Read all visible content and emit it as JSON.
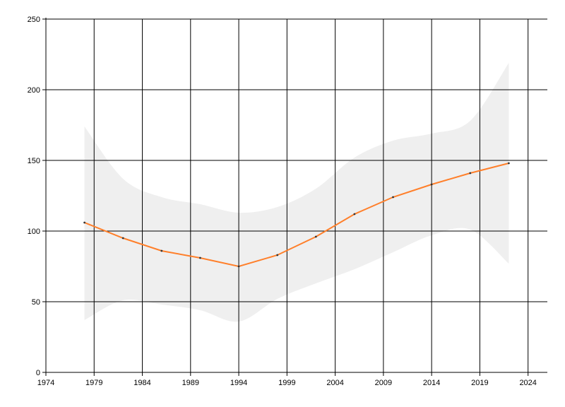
{
  "chart_data": {
    "type": "line",
    "title": "",
    "xlabel": "",
    "ylabel": "",
    "xlim": [
      1974,
      2026
    ],
    "ylim": [
      0,
      250
    ],
    "x_ticks": [
      1974,
      1979,
      1984,
      1989,
      1994,
      1999,
      2004,
      2009,
      2014,
      2019,
      2024
    ],
    "y_ticks": [
      0,
      50,
      100,
      150,
      200,
      250
    ],
    "grid": true,
    "legend": "none",
    "series": [
      {
        "x": [
          1978,
          1982,
          1986,
          1990,
          1994,
          1998,
          2002,
          2006,
          2010,
          2014,
          2018,
          2022
        ],
        "values": [
          106,
          95,
          86,
          81,
          75,
          83,
          96,
          112,
          124,
          133,
          141,
          148
        ],
        "color": "#ff7f2a",
        "marker_color": "#333333"
      }
    ],
    "band": {
      "x": [
        1978,
        1982,
        1986,
        1990,
        1994,
        1998,
        2002,
        2006,
        2010,
        2014,
        2018,
        2022
      ],
      "lower": [
        37,
        51,
        48,
        44,
        36,
        52,
        63,
        73,
        85,
        97,
        101,
        77
      ],
      "upper": [
        174,
        137,
        124,
        119,
        113,
        117,
        130,
        152,
        164,
        169,
        178,
        219
      ],
      "color": "#efefef"
    }
  }
}
